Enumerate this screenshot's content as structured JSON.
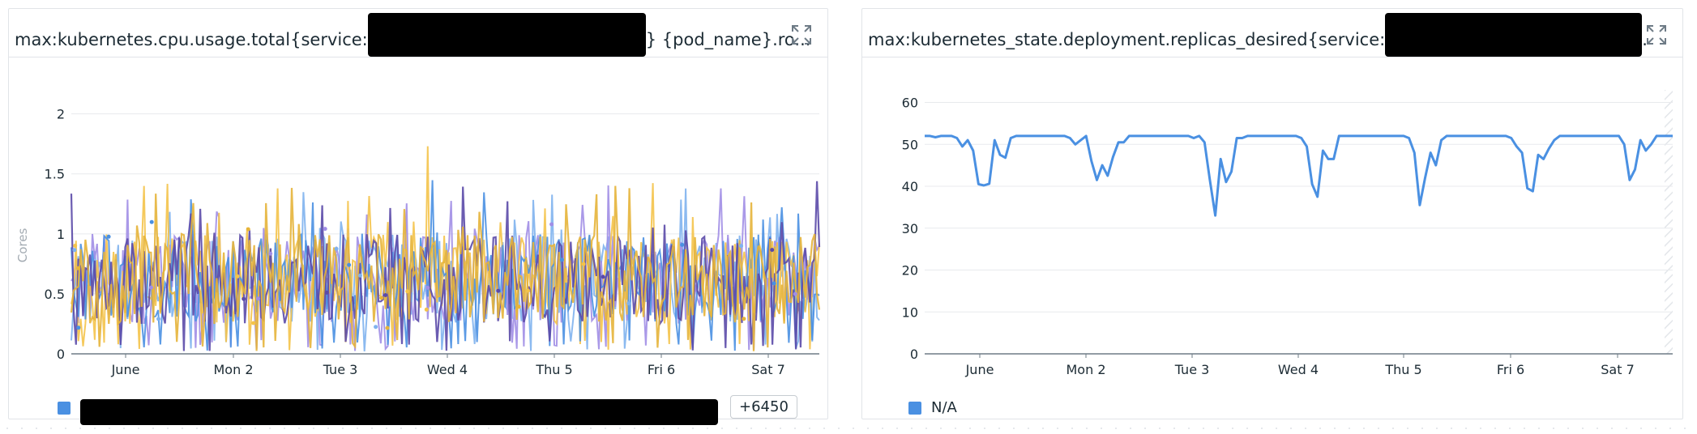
{
  "colors": {
    "blue": "#4a90e2",
    "purple": "#5b4aa8",
    "lavender": "#a18ee6",
    "yellow": "#f4c34a",
    "lightblue": "#7fb2ee",
    "gold": "#e6b43a",
    "line": "#4a90e2",
    "grid": "#e8eaed",
    "axis": "#6e7b86"
  },
  "widgets": [
    {
      "title_prefix": "max:kubernetes.cpu.usage.total{service:",
      "title_suffix": "} {pod_name}.ro...",
      "ylabel": "Cores",
      "legend_more": "+6450"
    },
    {
      "title_prefix": "max:kubernetes_state.deployment.replicas_desired{service:",
      "title_suffix": ".",
      "legend_label": "N/A"
    }
  ],
  "chart_data": [
    {
      "type": "line",
      "ylabel": "Cores",
      "x_tick_labels": [
        "June",
        "Mon 2",
        "Tue 3",
        "Wed 4",
        "Thu 5",
        "Fri 6",
        "Sat 7"
      ],
      "y_ticks": [
        0,
        0.5,
        1,
        1.5,
        2
      ],
      "ylim": [
        0,
        2.2
      ],
      "series_count_shown": 6,
      "series_hidden_count": 6450,
      "value_range_typical": [
        0.1,
        1.2
      ],
      "peak_value": 1.73,
      "grid": true
    },
    {
      "type": "line",
      "x_tick_labels": [
        "June",
        "Mon 2",
        "Tue 3",
        "Wed 4",
        "Thu 5",
        "Fri 6",
        "Sat 7"
      ],
      "y_ticks": [
        0,
        10,
        20,
        30,
        40,
        50,
        60
      ],
      "ylim": [
        0,
        63
      ],
      "series": [
        {
          "name": "N/A",
          "values": [
            52,
            52,
            51.7,
            52,
            52,
            52,
            51.5,
            49.5,
            51,
            48.5,
            40.5,
            40.2,
            40.6,
            51,
            47.5,
            46.8,
            51.5,
            52,
            52,
            52,
            52,
            52,
            52,
            52,
            52,
            52,
            52,
            51.5,
            50,
            51,
            52,
            46,
            41.5,
            45,
            42.5,
            47,
            50.5,
            50.5,
            52,
            52,
            52,
            52,
            52,
            52,
            52,
            52,
            52,
            52,
            52,
            52,
            51.5,
            52,
            50.5,
            41.5,
            33,
            46.5,
            41,
            43.5,
            51.5,
            51.5,
            52,
            52,
            52,
            52,
            52,
            52,
            52,
            52,
            52,
            52,
            51.5,
            49.5,
            40.5,
            37.5,
            48.5,
            46.5,
            46.5,
            52,
            52,
            52,
            52,
            52,
            52,
            52,
            52,
            52,
            52,
            52,
            52,
            52,
            51.5,
            48,
            35.5,
            42,
            48,
            45,
            51,
            52,
            52,
            52,
            52,
            52,
            52,
            52,
            52,
            52,
            52,
            52,
            52,
            51.5,
            49.5,
            48,
            39.5,
            38.8,
            47.5,
            46.5,
            49,
            51,
            52,
            52,
            52,
            52,
            52,
            52,
            52,
            52,
            52,
            52,
            52,
            52,
            50,
            41.5,
            44,
            51,
            48.5,
            50,
            52,
            52,
            52,
            52
          ]
        }
      ],
      "legend_entry": "N/A",
      "grid": true
    }
  ]
}
